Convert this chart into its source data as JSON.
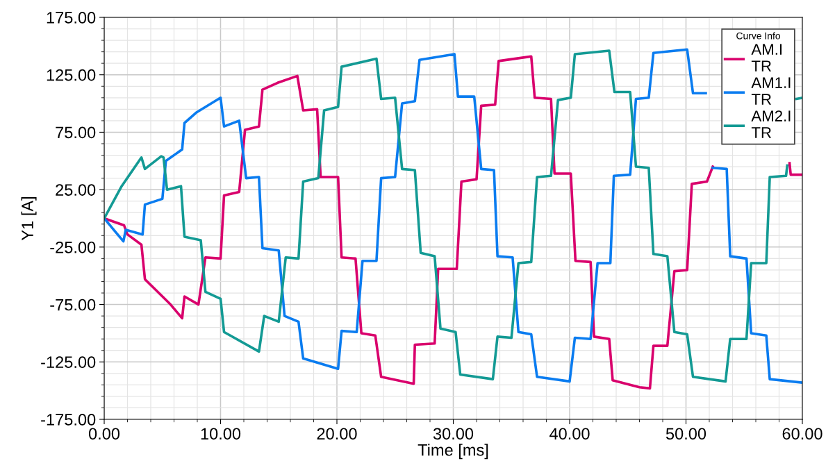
{
  "chart_data": {
    "type": "line",
    "xlabel": "Time [ms]",
    "ylabel": "Y1 [A]",
    "legend_title": "Curve Info",
    "legend": "top right",
    "grid": true,
    "marker": "none",
    "line_style": "solid",
    "xlim": [
      0,
      60
    ],
    "ylim": [
      -175,
      175
    ],
    "xticks": [
      {
        "value": 0,
        "label": "0.00"
      },
      {
        "value": 10,
        "label": "10.00"
      },
      {
        "value": 20,
        "label": "20.00"
      },
      {
        "value": 30,
        "label": "30.00"
      },
      {
        "value": 40,
        "label": "40.00"
      },
      {
        "value": 50,
        "label": "50.00"
      },
      {
        "value": 60,
        "label": "60.00"
      }
    ],
    "yticks": [
      {
        "value": -175,
        "label": "-175.00"
      },
      {
        "value": -125,
        "label": "-125.00"
      },
      {
        "value": -75,
        "label": "-75.00"
      },
      {
        "value": -25,
        "label": "-25.00"
      },
      {
        "value": 25,
        "label": "25.00"
      },
      {
        "value": 75,
        "label": "75.00"
      },
      {
        "value": 125,
        "label": "125.00"
      },
      {
        "value": 175,
        "label": "175.00"
      }
    ],
    "series": [
      {
        "name": "AM.I\nTR",
        "color": "#d9006c",
        "x": [
          0,
          1.7,
          2.0,
          3.2,
          3.5,
          5.7,
          6.7,
          6.9,
          8.1,
          8.7,
          10.0,
          10.3,
          11.6,
          12.1,
          13.3,
          13.6,
          14.9,
          16.6,
          17.1,
          18.3,
          18.6,
          20.1,
          20.4,
          21.6,
          22.1,
          23.3,
          23.8,
          26.6,
          26.7,
          28.4,
          28.7,
          30.3,
          30.7,
          32.0,
          32.4,
          33.6,
          33.9,
          36.7,
          37.0,
          38.4,
          38.7,
          40.1,
          40.5,
          41.8,
          42.1,
          43.4,
          43.7,
          46.0,
          46.9,
          47.2,
          48.4,
          49.0,
          50.1,
          50.5,
          51.8,
          52.3,
          55.0,
          58.9,
          59.0,
          60
        ],
        "values": [
          0,
          -6,
          -14,
          -23,
          -53,
          -75,
          -87,
          -68,
          -75,
          -34,
          -35,
          20,
          23,
          77,
          80,
          112,
          118,
          124,
          94,
          95,
          36,
          36,
          -34,
          -35,
          -100,
          -102,
          -138,
          -144,
          -110,
          -109,
          -44,
          -44,
          32,
          34,
          98,
          99,
          137,
          141,
          105,
          104,
          39,
          39,
          -37,
          -38,
          -103,
          -105,
          -141,
          -147,
          -148,
          -111,
          -111,
          -46,
          -45,
          30,
          32,
          45,
          null,
          48,
          38,
          38
        ]
      },
      {
        "name": "AM1.I\nTR",
        "color": "#0a7cf0",
        "x": [
          0,
          0.9,
          1.65,
          1.85,
          3.3,
          3.5,
          5.0,
          5.3,
          6.7,
          6.9,
          7.9,
          10.0,
          10.3,
          11.6,
          12.2,
          13.3,
          13.6,
          15.0,
          15.5,
          16.7,
          17.1,
          20.1,
          20.4,
          21.7,
          22.2,
          23.4,
          23.8,
          25.0,
          25.6,
          26.7,
          27.1,
          30.1,
          30.4,
          31.8,
          32.4,
          33.5,
          33.8,
          35.1,
          35.6,
          36.7,
          37.2,
          40.0,
          40.45,
          41.8,
          42.4,
          43.5,
          43.8,
          45.2,
          45.7,
          46.8,
          47.2,
          50.1,
          50.6,
          51.7,
          52.0,
          52.3,
          53.5,
          53.8,
          55.2,
          55.6,
          56.9,
          57.2,
          60
        ],
        "values": [
          0,
          -11,
          -20,
          -10,
          -14,
          12,
          17,
          50,
          60,
          83,
          92,
          105,
          80,
          85,
          35,
          36,
          -26,
          -28,
          -85,
          -90,
          -122,
          -131,
          -98,
          -99,
          -37,
          -37,
          35,
          36,
          100,
          102,
          138,
          143,
          106,
          106,
          43,
          42,
          -33,
          -34,
          -99,
          -101,
          -138,
          -142,
          -104,
          -105,
          -39,
          -39,
          37,
          38,
          104,
          105,
          144,
          147,
          109,
          109,
          null,
          44,
          43,
          -33,
          -35,
          -100,
          -102,
          -140,
          -143
        ]
      },
      {
        "name": "AM2.I\nTR",
        "color": "#139a94",
        "x": [
          0,
          1.5,
          3.2,
          3.5,
          4.9,
          5.1,
          5.4,
          6.6,
          6.9,
          8.3,
          8.7,
          10.0,
          10.3,
          13.3,
          13.75,
          15.0,
          15.6,
          16.7,
          17.1,
          18.4,
          18.9,
          20.1,
          20.4,
          23.4,
          23.8,
          25.0,
          25.6,
          26.7,
          27.2,
          28.4,
          28.9,
          30.2,
          30.6,
          33.4,
          33.8,
          35.0,
          35.6,
          36.7,
          37.2,
          38.4,
          39.0,
          40.1,
          40.45,
          43.4,
          43.85,
          45.2,
          45.7,
          46.8,
          47.2,
          48.4,
          49.0,
          50.1,
          50.6,
          53.4,
          53.8,
          55.2,
          55.6,
          56.9,
          57.2,
          58.6,
          58.7,
          59.2,
          59.5,
          60
        ],
        "values": [
          0,
          28,
          53,
          43,
          54,
          53,
          25,
          28,
          -16,
          -19,
          -64,
          -70,
          -99,
          -116,
          -85,
          -90,
          -34,
          -35,
          32,
          35,
          94,
          97,
          132,
          139,
          104,
          105,
          43,
          42,
          -30,
          -33,
          -96,
          -99,
          -136,
          -140,
          -103,
          -104,
          -39,
          -38,
          36,
          37,
          103,
          105,
          143,
          146,
          110,
          110,
          45,
          44,
          -31,
          -33,
          -99,
          -101,
          -138,
          -142,
          -105,
          -105,
          -39,
          -39,
          36,
          37,
          46,
          null,
          104,
          105
        ]
      }
    ]
  }
}
